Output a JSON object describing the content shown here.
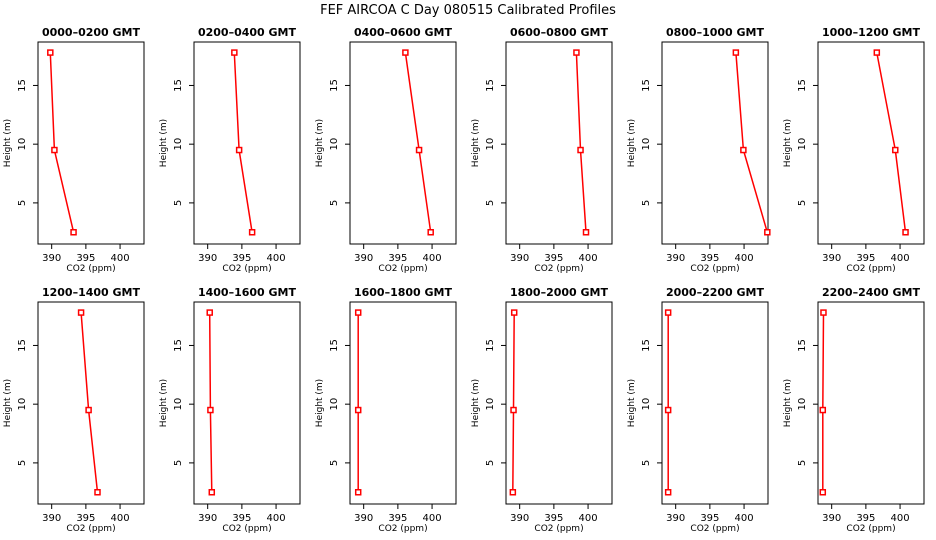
{
  "figure": {
    "title": "FEF AIRCOA C  Day 080515  Calibrated Profiles"
  },
  "chart_data": {
    "type": "line",
    "panel_grid": "2 rows x 6 columns",
    "line_color": "#ff0000",
    "marker": "open square",
    "x_axis": {
      "label": "CO2 (ppm)",
      "range": [
        388,
        403.5
      ],
      "ticks": [
        390,
        395,
        400
      ]
    },
    "y_axis": {
      "label": "Height (m)",
      "range": [
        1.5,
        18.7
      ],
      "ticks": [
        5,
        10,
        15
      ]
    },
    "panels": [
      {
        "title": "0000–0200 GMT",
        "points": [
          {
            "x": 393.2,
            "y": 2.5
          },
          {
            "x": 390.4,
            "y": 9.5
          },
          {
            "x": 389.8,
            "y": 17.8
          }
        ]
      },
      {
        "title": "0200–0400 GMT",
        "points": [
          {
            "x": 396.5,
            "y": 2.5
          },
          {
            "x": 394.6,
            "y": 9.5
          },
          {
            "x": 393.9,
            "y": 17.8
          }
        ]
      },
      {
        "title": "0400–0600 GMT",
        "points": [
          {
            "x": 399.8,
            "y": 2.5
          },
          {
            "x": 398.1,
            "y": 9.5
          },
          {
            "x": 396.1,
            "y": 17.8
          }
        ]
      },
      {
        "title": "0600–0800 GMT",
        "points": [
          {
            "x": 399.7,
            "y": 2.5
          },
          {
            "x": 398.9,
            "y": 9.5
          },
          {
            "x": 398.3,
            "y": 17.8
          }
        ]
      },
      {
        "title": "0800–1000 GMT",
        "points": [
          {
            "x": 403.4,
            "y": 2.5
          },
          {
            "x": 399.9,
            "y": 9.5
          },
          {
            "x": 398.8,
            "y": 17.8
          }
        ]
      },
      {
        "title": "1000–1200 GMT",
        "points": [
          {
            "x": 400.8,
            "y": 2.5
          },
          {
            "x": 399.3,
            "y": 9.5
          },
          {
            "x": 396.6,
            "y": 17.8
          }
        ]
      },
      {
        "title": "1200–1400 GMT",
        "points": [
          {
            "x": 396.7,
            "y": 2.5
          },
          {
            "x": 395.4,
            "y": 9.5
          },
          {
            "x": 394.3,
            "y": 17.8
          }
        ]
      },
      {
        "title": "1400–1600 GMT",
        "points": [
          {
            "x": 390.6,
            "y": 2.5
          },
          {
            "x": 390.4,
            "y": 9.5
          },
          {
            "x": 390.3,
            "y": 17.8
          }
        ]
      },
      {
        "title": "1600–1800 GMT",
        "points": [
          {
            "x": 389.2,
            "y": 2.5
          },
          {
            "x": 389.2,
            "y": 9.5
          },
          {
            "x": 389.2,
            "y": 17.8
          }
        ]
      },
      {
        "title": "1800–2000 GMT",
        "points": [
          {
            "x": 389.0,
            "y": 2.5
          },
          {
            "x": 389.1,
            "y": 9.5
          },
          {
            "x": 389.2,
            "y": 17.8
          }
        ]
      },
      {
        "title": "2000–2200 GMT",
        "points": [
          {
            "x": 388.9,
            "y": 2.5
          },
          {
            "x": 388.9,
            "y": 9.5
          },
          {
            "x": 388.9,
            "y": 17.8
          }
        ]
      },
      {
        "title": "2200–2400 GMT",
        "points": [
          {
            "x": 388.7,
            "y": 2.5
          },
          {
            "x": 388.7,
            "y": 9.5
          },
          {
            "x": 388.8,
            "y": 17.8
          }
        ]
      }
    ]
  }
}
